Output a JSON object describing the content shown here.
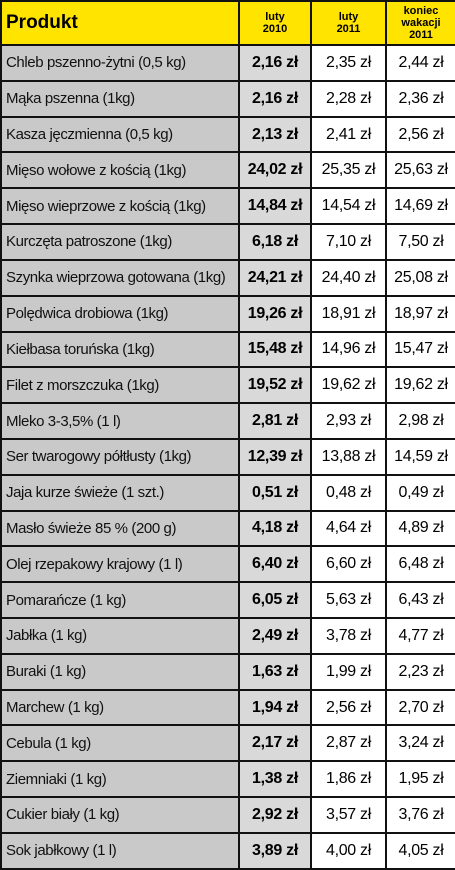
{
  "header": {
    "columns": [
      [
        "Produkt"
      ],
      [
        "luty",
        "2010"
      ],
      [
        "luty",
        "2011"
      ],
      [
        "koniec",
        "wakacji",
        "2011"
      ]
    ]
  },
  "table": {
    "rows": [
      [
        "Chleb pszenno-żytni (0,5 kg)",
        "2,16 zł",
        "2,35 zł",
        "2,44 zł"
      ],
      [
        "Mąka pszenna (1kg)",
        "2,16 zł",
        "2,28 zł",
        "2,36 zł"
      ],
      [
        "Kasza jęczmienna (0,5 kg)",
        "2,13 zł",
        "2,41 zł",
        "2,56 zł"
      ],
      [
        "Mięso wołowe z kością (1kg)",
        "24,02 zł",
        "25,35 zł",
        "25,63 zł"
      ],
      [
        "Mięso wieprzowe z kością (1kg)",
        "14,84 zł",
        "14,54 zł",
        "14,69 zł"
      ],
      [
        "Kurczęta patroszone (1kg)",
        "6,18 zł",
        "7,10 zł",
        "7,50 zł"
      ],
      [
        "Szynka wieprzowa gotowana (1kg)",
        "24,21 zł",
        "24,40 zł",
        "25,08 zł"
      ],
      [
        "Polędwica drobiowa (1kg)",
        "19,26 zł",
        "18,91 zł",
        "18,97 zł"
      ],
      [
        "Kiełbasa toruńska (1kg)",
        "15,48 zł",
        "14,96 zł",
        "15,47 zł"
      ],
      [
        "Filet z morszczuka (1kg)",
        "19,52 zł",
        "19,62 zł",
        "19,62 zł"
      ],
      [
        "Mleko 3-3,5% (1 l)",
        "2,81 zł",
        "2,93 zł",
        "2,98 zł"
      ],
      [
        "Ser twarogowy półtłusty (1kg)",
        "12,39 zł",
        "13,88 zł",
        "14,59 zł"
      ],
      [
        "Jaja kurze świeże (1 szt.)",
        "0,51 zł",
        "0,48 zł",
        "0,49 zł"
      ],
      [
        "Masło świeże 85 % (200 g)",
        "4,18 zł",
        "4,64 zł",
        "4,89 zł"
      ],
      [
        "Olej rzepakowy krajowy (1 l)",
        "6,40 zł",
        "6,60 zł",
        "6,48 zł"
      ],
      [
        "Pomarańcze (1 kg)",
        "6,05 zł",
        "5,63 zł",
        "6,43 zł"
      ],
      [
        "Jabłka (1 kg)",
        "2,49 zł",
        "3,78 zł",
        "4,77 zł"
      ],
      [
        "Buraki (1 kg)",
        "1,63 zł",
        "1,99 zł",
        "2,23 zł"
      ],
      [
        "Marchew (1 kg)",
        "1,94 zł",
        "2,56 zł",
        "2,70 zł"
      ],
      [
        "Cebula (1 kg)",
        "2,17 zł",
        "2,87 zł",
        "3,24 zł"
      ],
      [
        "Ziemniaki (1 kg)",
        "1,38 zł",
        "1,86 zł",
        "1,95 zł"
      ],
      [
        "Cukier biały (1 kg)",
        "2,92 zł",
        "3,57 zł",
        "3,76 zł"
      ],
      [
        "Sok jabłkowy (1 l)",
        "3,89 zł",
        "4,00 zł",
        "4,05 zł"
      ]
    ]
  }
}
